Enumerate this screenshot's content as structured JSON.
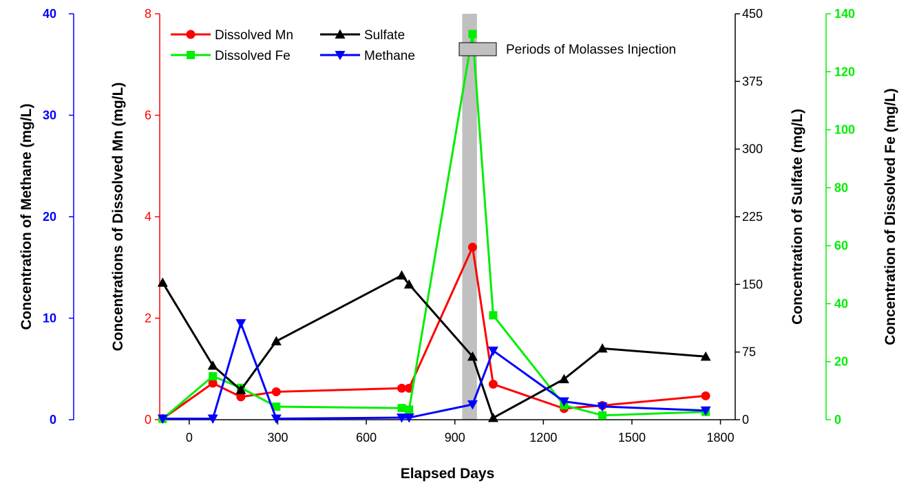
{
  "chart_data": {
    "type": "line",
    "xlabel": "Elapsed Days",
    "xlim": [
      -100,
      1850
    ],
    "xticks": [
      0,
      300,
      600,
      900,
      1200,
      1500,
      1800
    ],
    "shaded_period": {
      "label": "Periods of Molasses Injection",
      "x_range": [
        925,
        975
      ],
      "color": "#c0c0c0"
    },
    "axes": {
      "methane": {
        "label": "Concentration of Methane (mg/L)",
        "ylim": [
          0,
          40
        ],
        "ticks": [
          0,
          10,
          20,
          30,
          40
        ],
        "color": "#0000ff",
        "side": "left",
        "bold_ticks": true
      },
      "mn": {
        "label": "Concentrations of Dissolved Mn (mg/L)",
        "ylim": [
          0,
          8
        ],
        "ticks": [
          0,
          2,
          4,
          6,
          8
        ],
        "color": "#ff0000",
        "side": "left",
        "bold_ticks": false
      },
      "sulfate": {
        "label": "Concentration of Sulfate (mg/L)",
        "ylim": [
          0,
          450
        ],
        "ticks": [
          0,
          75,
          150,
          225,
          300,
          375,
          450
        ],
        "color": "#000000",
        "side": "right",
        "bold_ticks": false
      },
      "fe": {
        "label": "Concentration of Dissolved Fe (mg/L)",
        "ylim": [
          0,
          140
        ],
        "ticks": [
          0,
          20,
          40,
          60,
          80,
          100,
          120,
          140
        ],
        "color": "#00ee00",
        "side": "right",
        "bold_ticks": true
      }
    },
    "series": [
      {
        "name": "Dissolved Mn",
        "axis": "mn",
        "color": "#ff0000",
        "marker": "circle",
        "x": [
          -90,
          80,
          175,
          295,
          720,
          745,
          960,
          1030,
          1270,
          1400,
          1750
        ],
        "y": [
          0.02,
          0.72,
          0.45,
          0.55,
          0.62,
          0.62,
          3.4,
          0.7,
          0.22,
          0.28,
          0.47
        ]
      },
      {
        "name": "Dissolved Fe",
        "axis": "fe",
        "color": "#00ee00",
        "marker": "square",
        "x": [
          -90,
          80,
          175,
          295,
          720,
          745,
          960,
          1030,
          1270,
          1400,
          1750
        ],
        "y": [
          0.3,
          15,
          11,
          4.5,
          4,
          3.5,
          133,
          36,
          5,
          1.5,
          2.7
        ]
      },
      {
        "name": "Sulfate",
        "axis": "sulfate",
        "color": "#000000",
        "marker": "triangle-up",
        "x": [
          -90,
          80,
          175,
          295,
          720,
          745,
          960,
          1030,
          1270,
          1400,
          1750
        ],
        "y": [
          152,
          60,
          33,
          87,
          160,
          150,
          70,
          2,
          45,
          79,
          70
        ]
      },
      {
        "name": "Methane",
        "axis": "methane",
        "color": "#0000ff",
        "marker": "triangle-down",
        "x": [
          -90,
          80,
          175,
          295,
          720,
          745,
          960,
          1030,
          1270,
          1400,
          1750
        ],
        "y": [
          0.1,
          0.1,
          9.5,
          0.1,
          0.2,
          0.2,
          1.5,
          6.8,
          1.8,
          1.3,
          0.9
        ]
      }
    ],
    "legend": [
      {
        "series": "Dissolved Mn",
        "label": "Dissolved Mn"
      },
      {
        "series": "Sulfate",
        "label": "Sulfate"
      },
      {
        "series": "Dissolved Fe",
        "label": "Dissolved Fe"
      },
      {
        "series": "Methane",
        "label": "Methane"
      }
    ]
  }
}
